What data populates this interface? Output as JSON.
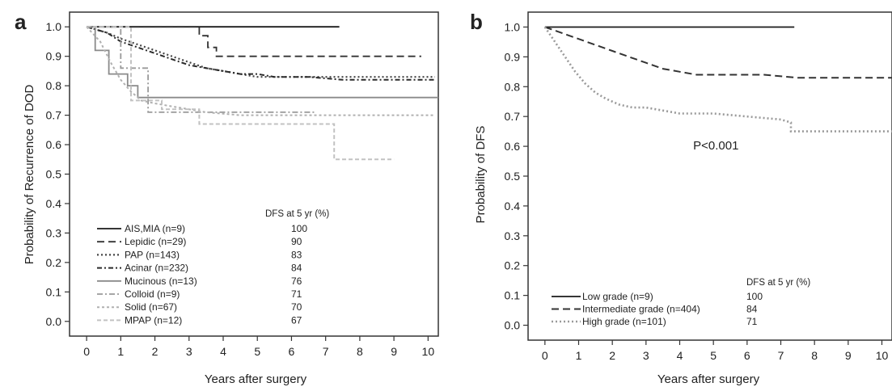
{
  "chart_data": [
    {
      "panel": "a",
      "type": "line",
      "xlabel": "Years after surgery",
      "ylabel": "Probability of Recurrence of DOD",
      "xlim": [
        -0.5,
        10.3
      ],
      "ylim": [
        -0.05,
        1.05
      ],
      "xticks": [
        0,
        1,
        2,
        3,
        4,
        5,
        6,
        7,
        8,
        9,
        10
      ],
      "yticks": [
        "0.0",
        "0.1",
        "0.2",
        "0.3",
        "0.4",
        "0.5",
        "0.6",
        "0.7",
        "0.8",
        "0.9",
        "1.0"
      ],
      "legend_placement": "bottom-left",
      "legend_title": "DFS at 5 yr (%)",
      "series": [
        {
          "name": "AIS,MIA (n=9)",
          "dfs5": "100",
          "color": "#1a1a1a",
          "dash": "none",
          "width": 1.8,
          "x": [
            0,
            7.4
          ],
          "y": [
            1.0,
            1.0
          ]
        },
        {
          "name": "Lepidic (n=29)",
          "dfs5": "90",
          "color": "#333333",
          "dash": "9,5",
          "width": 1.8,
          "x": [
            0,
            3.3,
            3.3,
            3.55,
            3.55,
            3.8,
            3.8,
            9.8
          ],
          "y": [
            1.0,
            1.0,
            0.97,
            0.97,
            0.93,
            0.93,
            0.9,
            0.9
          ]
        },
        {
          "name": "PAP (n=143)",
          "dfs5": "83",
          "color": "#444444",
          "dash": "2,3",
          "width": 2.2,
          "x": [
            0,
            0.3,
            0.6,
            1.0,
            1.5,
            2.0,
            2.5,
            3.0,
            3.5,
            4.0,
            4.5,
            5.0,
            6.0,
            7.0,
            8.0,
            10.2
          ],
          "y": [
            1.0,
            0.99,
            0.98,
            0.96,
            0.94,
            0.92,
            0.9,
            0.88,
            0.86,
            0.85,
            0.84,
            0.83,
            0.83,
            0.83,
            0.83,
            0.83
          ]
        },
        {
          "name": "Acinar (n=232)",
          "dfs5": "84",
          "color": "#2a2a2a",
          "dash": "6,3,2,3",
          "width": 2.0,
          "x": [
            0,
            0.3,
            0.6,
            1.0,
            1.5,
            2.0,
            2.5,
            3.0,
            3.5,
            4.0,
            4.5,
            5.0,
            5.5,
            6.5,
            7.5,
            10.2
          ],
          "y": [
            1.0,
            0.99,
            0.98,
            0.95,
            0.93,
            0.91,
            0.89,
            0.87,
            0.86,
            0.85,
            0.84,
            0.84,
            0.83,
            0.83,
            0.82,
            0.82
          ]
        },
        {
          "name": "Mucinous (n=13)",
          "dfs5": "76",
          "color": "#8a8a8a",
          "dash": "none",
          "width": 1.8,
          "x": [
            0,
            0.25,
            0.25,
            0.65,
            0.65,
            1.2,
            1.2,
            1.5,
            1.5,
            10.3
          ],
          "y": [
            1.0,
            1.0,
            0.92,
            0.92,
            0.84,
            0.84,
            0.8,
            0.8,
            0.76,
            0.76
          ]
        },
        {
          "name": "Colloid (n=9)",
          "dfs5": "71",
          "color": "#9a9a9a",
          "dash": "7,3,2,3",
          "width": 1.8,
          "x": [
            0,
            1.0,
            1.0,
            1.8,
            1.8,
            6.7
          ],
          "y": [
            1.0,
            1.0,
            0.86,
            0.86,
            0.71,
            0.71
          ]
        },
        {
          "name": "Solid (n=67)",
          "dfs5": "70",
          "color": "#b0b0b0",
          "dash": "3,3",
          "width": 2.0,
          "x": [
            0,
            0.4,
            0.7,
            1.0,
            1.3,
            1.6,
            2.0,
            2.5,
            3.0,
            3.5,
            4.5,
            6.0,
            7.5,
            10.2
          ],
          "y": [
            1.0,
            0.95,
            0.88,
            0.82,
            0.78,
            0.75,
            0.74,
            0.73,
            0.72,
            0.71,
            0.7,
            0.7,
            0.7,
            0.7
          ]
        },
        {
          "name": "MPAP (n=12)",
          "dfs5": "67",
          "color": "#c2c2c2",
          "dash": "5,3",
          "width": 2.0,
          "x": [
            0,
            1.3,
            1.3,
            2.2,
            2.2,
            3.3,
            3.3,
            7.25,
            7.25,
            9.0
          ],
          "y": [
            1.0,
            1.0,
            0.75,
            0.75,
            0.72,
            0.72,
            0.67,
            0.67,
            0.55,
            0.55
          ]
        }
      ]
    },
    {
      "panel": "b",
      "type": "line",
      "xlabel": "Years after surgery",
      "ylabel": "Probability of DFS",
      "xlim": [
        -0.5,
        10.3
      ],
      "ylim": [
        -0.05,
        1.05
      ],
      "xticks": [
        0,
        1,
        2,
        3,
        4,
        5,
        6,
        7,
        8,
        9,
        10
      ],
      "yticks": [
        "0.0",
        "0.1",
        "0.2",
        "0.3",
        "0.4",
        "0.5",
        "0.6",
        "0.7",
        "0.8",
        "0.9",
        "1.0"
      ],
      "annotation": "P<0.001",
      "annotation_pos": {
        "x": 4.4,
        "y": 0.59
      },
      "legend_placement": "bottom-left",
      "legend_title": "DFS at 5 yr (%)",
      "series": [
        {
          "name": "Low grade (n=9)",
          "dfs5": "100",
          "color": "#1a1a1a",
          "dash": "none",
          "width": 1.8,
          "x": [
            0,
            7.4
          ],
          "y": [
            1.0,
            1.0
          ]
        },
        {
          "name": "Intermediate grade (n=404)",
          "dfs5": "84",
          "color": "#333333",
          "dash": "9,5",
          "width": 2.0,
          "x": [
            0,
            0.5,
            1.0,
            1.5,
            2.0,
            2.5,
            3.0,
            3.5,
            4.0,
            4.5,
            5.0,
            5.5,
            6.5,
            7.5,
            10.3
          ],
          "y": [
            1.0,
            0.98,
            0.96,
            0.94,
            0.92,
            0.9,
            0.88,
            0.86,
            0.85,
            0.84,
            0.84,
            0.84,
            0.84,
            0.83,
            0.83
          ]
        },
        {
          "name": "High grade (n=101)",
          "dfs5": "71",
          "color": "#9a9a9a",
          "dash": "2,3",
          "width": 2.6,
          "x": [
            0,
            0.3,
            0.6,
            0.9,
            1.2,
            1.5,
            1.8,
            2.2,
            2.6,
            3.0,
            3.5,
            4.0,
            5.0,
            6.0,
            7.0,
            7.3,
            7.3,
            10.3
          ],
          "y": [
            1.0,
            0.95,
            0.9,
            0.85,
            0.81,
            0.78,
            0.76,
            0.74,
            0.73,
            0.73,
            0.72,
            0.71,
            0.71,
            0.7,
            0.69,
            0.68,
            0.65,
            0.65
          ]
        }
      ]
    }
  ]
}
